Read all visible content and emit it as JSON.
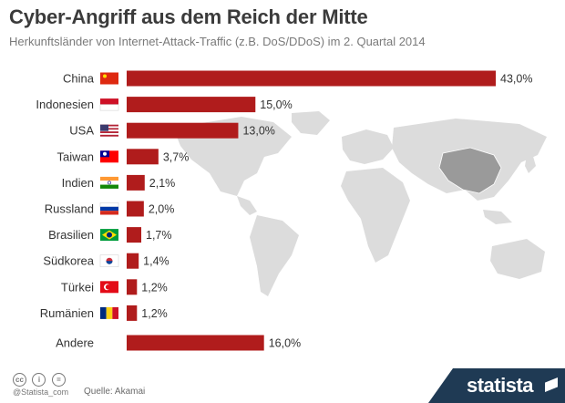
{
  "header": {
    "title": "Cyber-Angriff aus dem Reich der Mitte",
    "subtitle": "Herkunftsländer von Internet-Attack-Traffic (z.B. DoS/DDoS) im 2. Quartal 2014"
  },
  "chart_data": {
    "type": "bar",
    "orientation": "horizontal",
    "categories": [
      "China",
      "Indonesien",
      "USA",
      "Taiwan",
      "Indien",
      "Russland",
      "Brasilien",
      "Südkorea",
      "Türkei",
      "Rumänien",
      "Andere"
    ],
    "values": [
      43.0,
      15.0,
      13.0,
      3.7,
      2.1,
      2.0,
      1.7,
      1.4,
      1.2,
      1.2,
      16.0
    ],
    "value_labels": [
      "43,0%",
      "15,0%",
      "13,0%",
      "3,7%",
      "2,1%",
      "2,0%",
      "1,7%",
      "1,4%",
      "1,2%",
      "1,2%",
      "16,0%"
    ],
    "xlim": [
      0,
      43
    ],
    "unit": "%",
    "bar_color": "#b01c1c",
    "grid": false,
    "legend": "none"
  },
  "colors": {
    "bar": "#b01c1c",
    "map_land": "#dcdcdc",
    "map_highlight": "#9a9a9a",
    "brand_bg": "#1f3a54"
  },
  "footer": {
    "cc_icons": [
      "cc",
      "i",
      "="
    ],
    "credit": "@Statista_com",
    "source": "Quelle: Akamai",
    "brand": "statista"
  }
}
